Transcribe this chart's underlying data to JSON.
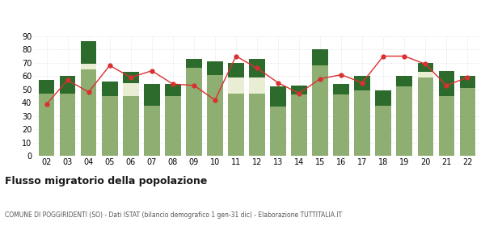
{
  "years": [
    "02",
    "03",
    "04",
    "05",
    "06",
    "07",
    "08",
    "09",
    "10",
    "11",
    "12",
    "13",
    "14",
    "15",
    "16",
    "17",
    "18",
    "19",
    "20",
    "21",
    "22"
  ],
  "iscritti_altri_comuni": [
    47,
    47,
    65,
    45,
    45,
    38,
    45,
    66,
    61,
    47,
    47,
    37,
    46,
    68,
    46,
    49,
    38,
    52,
    59,
    45,
    51
  ],
  "iscritti_estero": [
    0,
    0,
    4,
    0,
    10,
    0,
    0,
    0,
    0,
    12,
    12,
    0,
    0,
    0,
    0,
    0,
    0,
    0,
    4,
    0,
    0
  ],
  "iscritti_altri": [
    10,
    13,
    17,
    11,
    8,
    16,
    9,
    7,
    10,
    11,
    14,
    15,
    7,
    12,
    8,
    11,
    11,
    8,
    7,
    19,
    9
  ],
  "cancellati": [
    39,
    57,
    48,
    68,
    59,
    64,
    54,
    53,
    42,
    75,
    66,
    55,
    47,
    58,
    61,
    55,
    75,
    75,
    69,
    53,
    59
  ],
  "color_altri_comuni": "#8faf72",
  "color_estero": "#e8edd4",
  "color_altri": "#2d6b2d",
  "color_cancellati": "#d93030",
  "background_color": "#ffffff",
  "grid_color": "#dddddd",
  "ylim": [
    0,
    90
  ],
  "yticks": [
    0,
    10,
    20,
    30,
    40,
    50,
    60,
    70,
    80,
    90
  ],
  "title": "Flusso migratorio della popolazione",
  "subtitle": "COMUNE DI POGGIRIDENTI (SO) - Dati ISTAT (bilancio demografico 1 gen-31 dic) - Elaborazione TUTTITALIA.IT"
}
